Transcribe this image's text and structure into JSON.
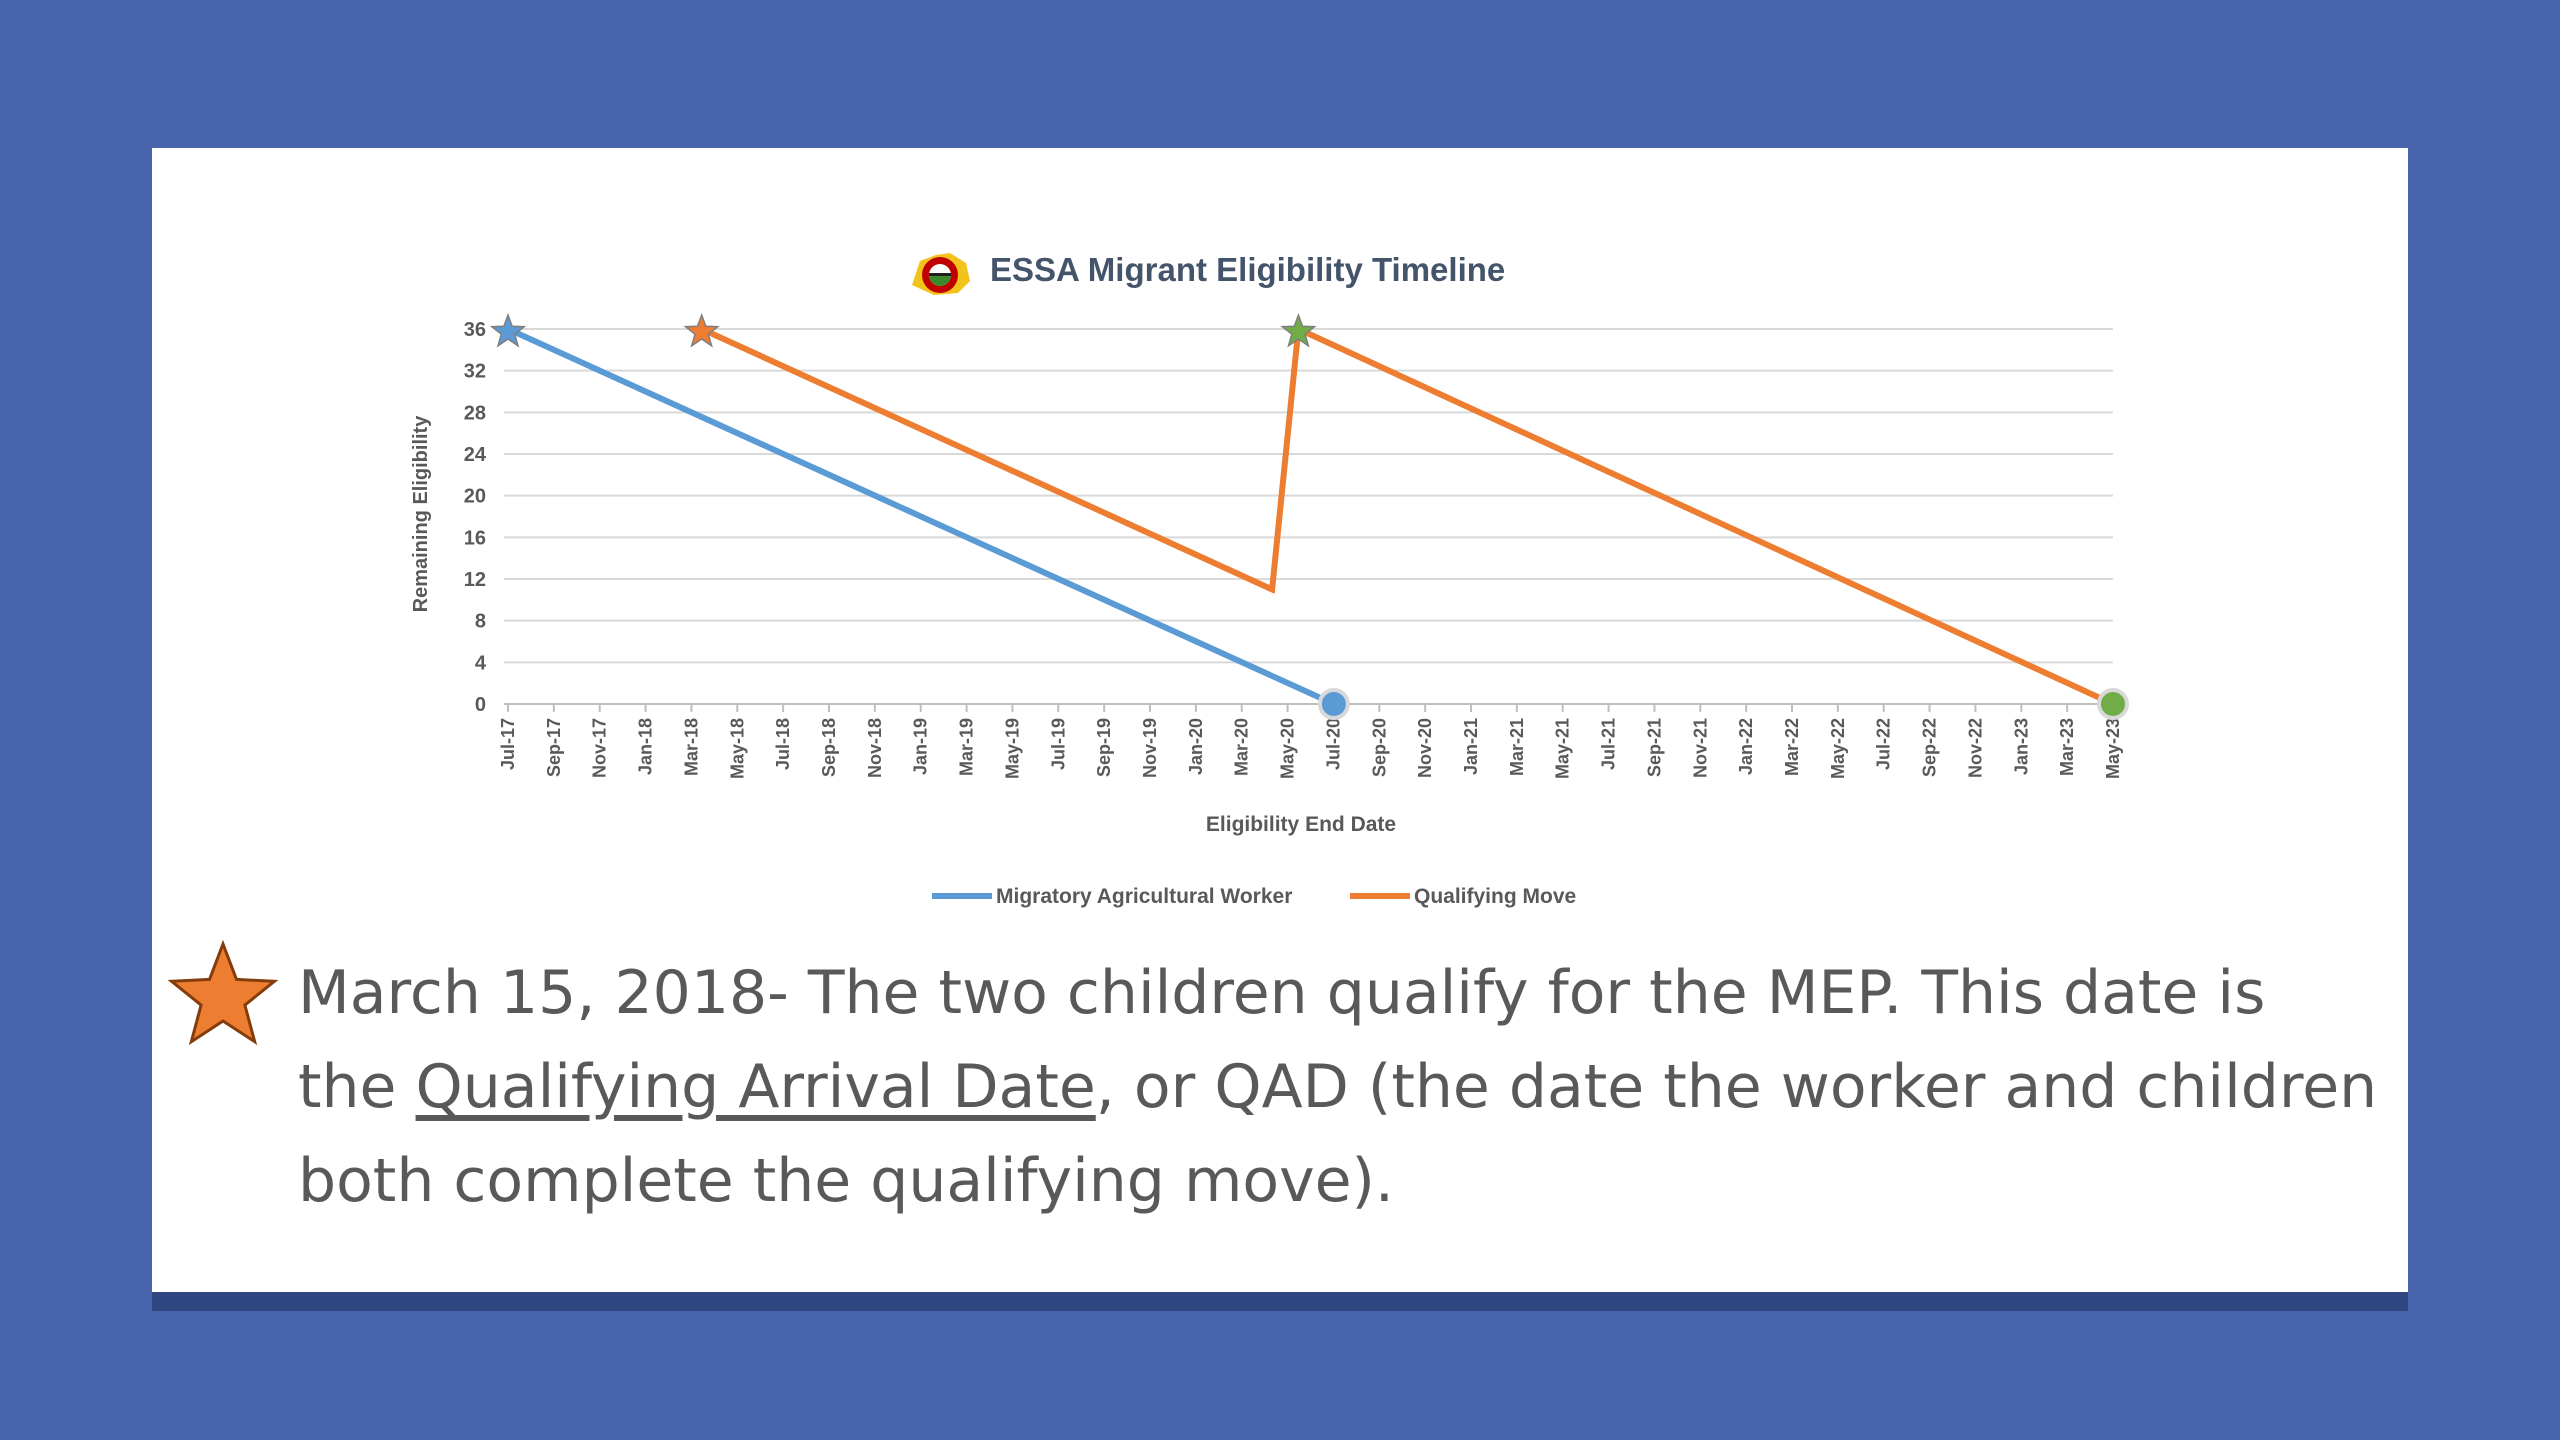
{
  "colors": {
    "background": "#4864ad",
    "card": "#ffffff",
    "migratory_series": "#5b9bd5",
    "qualifying_series": "#ed7d31",
    "green_marker": "#70ad47",
    "gridline": "#d9d9d9",
    "text": "#595959"
  },
  "icons": {
    "logo": "eligibility-logo-icon",
    "caption_marker": "orange-star-icon"
  },
  "chart_data": {
    "type": "line",
    "title": "ESSA Migrant Eligibility Timeline",
    "xlabel": "Eligibility End Date",
    "ylabel": "Remaining Eligibility",
    "ylim": [
      0,
      36
    ],
    "yticks": [
      0,
      4,
      8,
      12,
      16,
      20,
      24,
      28,
      32,
      36
    ],
    "xticks": [
      "Jul-17",
      "Sep-17",
      "Nov-17",
      "Jan-18",
      "Mar-18",
      "May-18",
      "Jul-18",
      "Sep-18",
      "Nov-18",
      "Jan-19",
      "Mar-19",
      "May-19",
      "Jul-19",
      "Sep-19",
      "Nov-19",
      "Jan-20",
      "Mar-20",
      "May-20",
      "Jul-20",
      "Sep-20",
      "Nov-20",
      "Jan-21",
      "Mar-21",
      "May-21",
      "Jul-21",
      "Sep-21",
      "Nov-21",
      "Jan-22",
      "Mar-22",
      "May-22",
      "Jul-22",
      "Sep-22",
      "Nov-22",
      "Jan-23",
      "Mar-23",
      "May-23"
    ],
    "xlim": [
      "2017-07-01",
      "2023-05-01"
    ],
    "grid": true,
    "legend_position": "bottom",
    "series": [
      {
        "name": "Migratory Agricultural Worker",
        "color": "#5b9bd5",
        "points": [
          {
            "x": "2017-07-01",
            "y": 36,
            "marker": "star",
            "marker_color": "#5b9bd5"
          },
          {
            "x": "2020-07-01",
            "y": 0,
            "marker": "circle",
            "marker_color": "#5b9bd5"
          }
        ]
      },
      {
        "name": "Qualifying Move",
        "color": "#ed7d31",
        "points": [
          {
            "x": "2018-03-15",
            "y": 36,
            "marker": "star",
            "marker_color": "#ed7d31"
          },
          {
            "x": "2020-04-10",
            "y": 11
          },
          {
            "x": "2020-05-15",
            "y": 36,
            "marker": "star",
            "marker_color": "#70ad47"
          },
          {
            "x": "2023-05-01",
            "y": 0,
            "marker": "circle",
            "marker_color": "#70ad47"
          }
        ]
      }
    ]
  },
  "caption": {
    "part1": "March 15, 2018- The two children qualify for the MEP. This date is the ",
    "underlined": "Qualifying Arrival Date",
    "part2": ", or QAD (the date the worker and children both complete the qualifying move)."
  }
}
